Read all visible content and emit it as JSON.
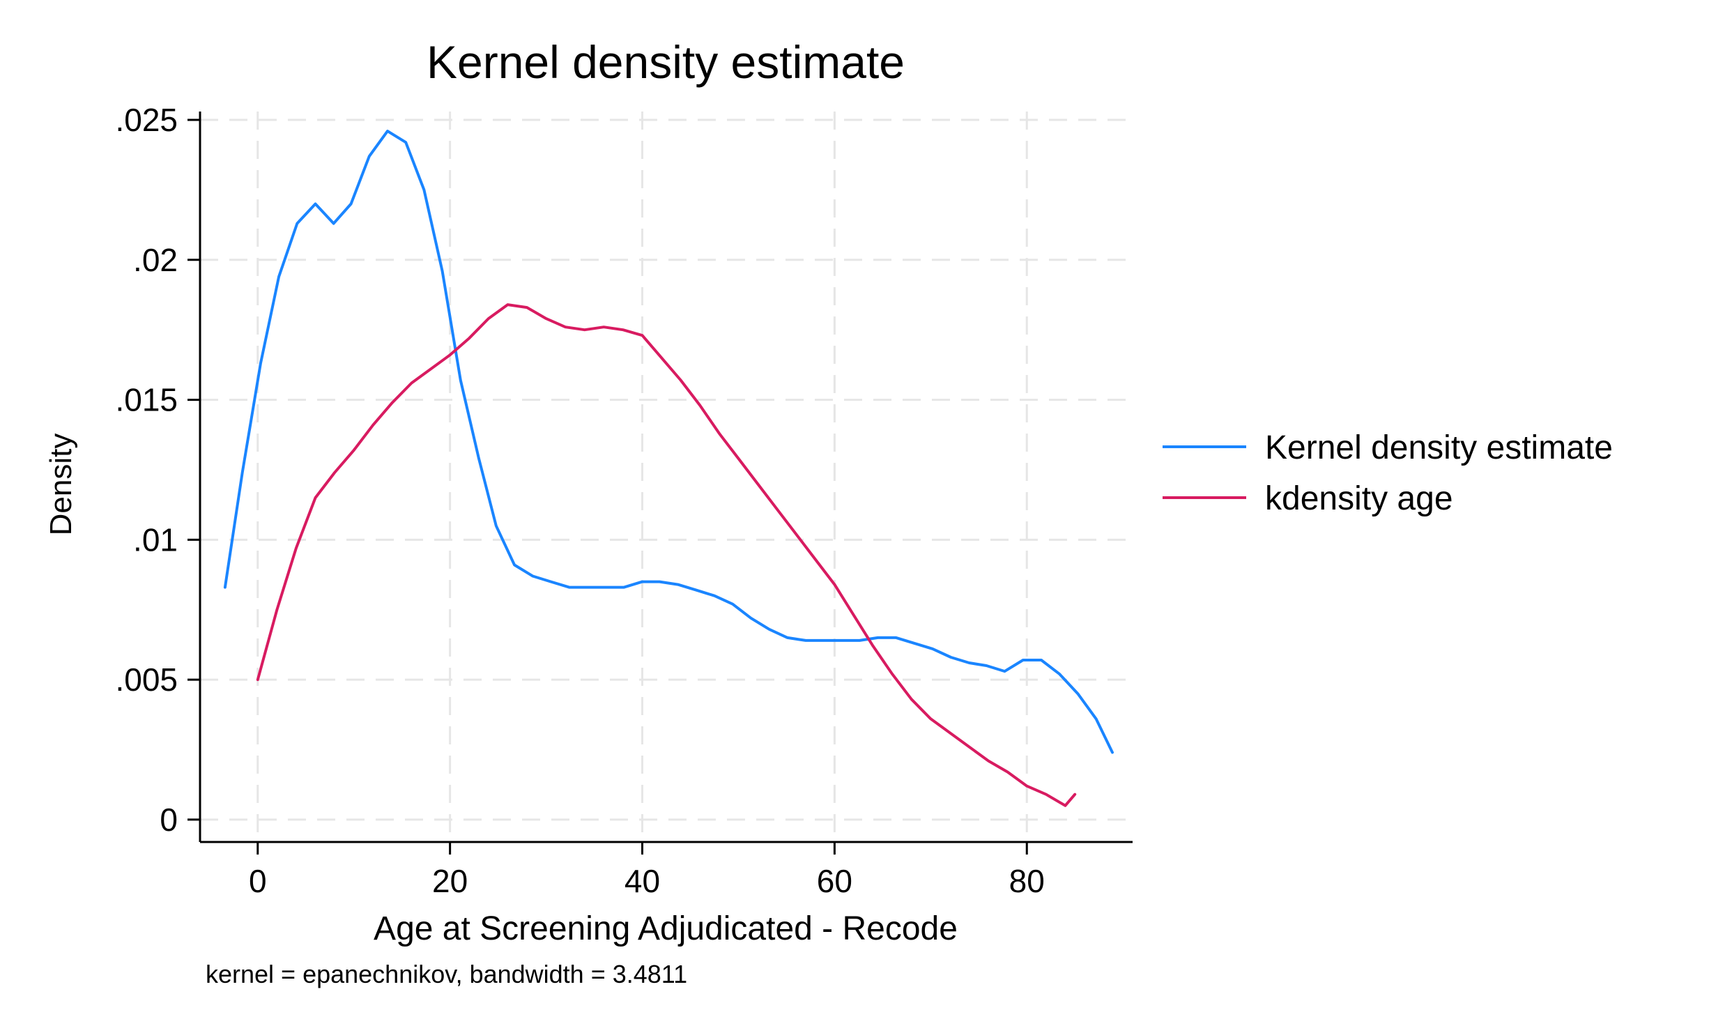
{
  "chart_data": {
    "type": "line",
    "title": "Kernel density estimate",
    "xlabel": "Age at Screening Adjudicated - Recode",
    "ylabel": "Density",
    "note": "kernel = epanechnikov, bandwidth = 3.4811",
    "xlim": [
      -6,
      91
    ],
    "ylim": [
      -0.0008,
      0.0253
    ],
    "x_ticks": [
      0,
      20,
      40,
      60,
      80
    ],
    "x_tick_labels": [
      "0",
      "20",
      "40",
      "60",
      "80"
    ],
    "y_ticks": [
      0,
      0.005,
      0.01,
      0.015,
      0.02,
      0.025
    ],
    "y_tick_labels": [
      "0",
      ".005",
      ".01",
      ".015",
      ".02",
      ".025"
    ],
    "grid": true,
    "legend_position": "right",
    "series": [
      {
        "name": "Kernel density estimate",
        "color": "#1a85ff",
        "x": [
          -3.4,
          -1.6,
          0.3,
          2.2,
          4.1,
          6.0,
          7.9,
          9.7,
          11.6,
          13.5,
          15.4,
          17.3,
          19.2,
          21.1,
          23.0,
          24.8,
          26.7,
          28.6,
          30.5,
          32.4,
          34.3,
          36.2,
          38.1,
          40.0,
          41.8,
          43.7,
          45.6,
          47.5,
          49.4,
          51.3,
          53.2,
          55.1,
          57.0,
          58.9,
          60.7,
          62.6,
          64.5,
          66.4,
          68.3,
          70.2,
          72.1,
          74.0,
          75.8,
          77.7,
          79.6,
          81.5,
          83.4,
          85.3,
          87.2,
          88.9
        ],
        "y": [
          0.0083,
          0.0124,
          0.0163,
          0.0194,
          0.0213,
          0.022,
          0.0213,
          0.022,
          0.0237,
          0.0246,
          0.0242,
          0.0225,
          0.0196,
          0.0157,
          0.0129,
          0.0105,
          0.0091,
          0.0087,
          0.0085,
          0.0083,
          0.0083,
          0.0083,
          0.0083,
          0.0085,
          0.0085,
          0.0084,
          0.0082,
          0.008,
          0.0077,
          0.0072,
          0.0068,
          0.0065,
          0.0064,
          0.0064,
          0.0064,
          0.0064,
          0.0065,
          0.0065,
          0.0063,
          0.0061,
          0.0058,
          0.0056,
          0.0055,
          0.0053,
          0.0057,
          0.0057,
          0.0052,
          0.0045,
          0.0036,
          0.0024
        ]
      },
      {
        "name": "kdensity age",
        "color": "#d81b60",
        "x": [
          0,
          2,
          4,
          6,
          8,
          10,
          12,
          14,
          16,
          18,
          20,
          22,
          24,
          26,
          28,
          30,
          32,
          34,
          36,
          38,
          40,
          42,
          44,
          46,
          48,
          50,
          52,
          54,
          56,
          58,
          60,
          62,
          64,
          66,
          68,
          70,
          72,
          74,
          76,
          78,
          80,
          82,
          84,
          85
        ],
        "y": [
          0.005,
          0.0075,
          0.0097,
          0.0115,
          0.0124,
          0.0132,
          0.0141,
          0.0149,
          0.0156,
          0.0161,
          0.0166,
          0.0172,
          0.0179,
          0.0184,
          0.0183,
          0.0179,
          0.0176,
          0.0175,
          0.0176,
          0.0175,
          0.0173,
          0.0165,
          0.0157,
          0.0148,
          0.0138,
          0.0129,
          0.012,
          0.0111,
          0.0102,
          0.0093,
          0.0084,
          0.0073,
          0.0062,
          0.0052,
          0.0043,
          0.0036,
          0.0031,
          0.0026,
          0.0021,
          0.0017,
          0.0012,
          0.0009,
          0.0005,
          0.0009
        ]
      }
    ]
  }
}
